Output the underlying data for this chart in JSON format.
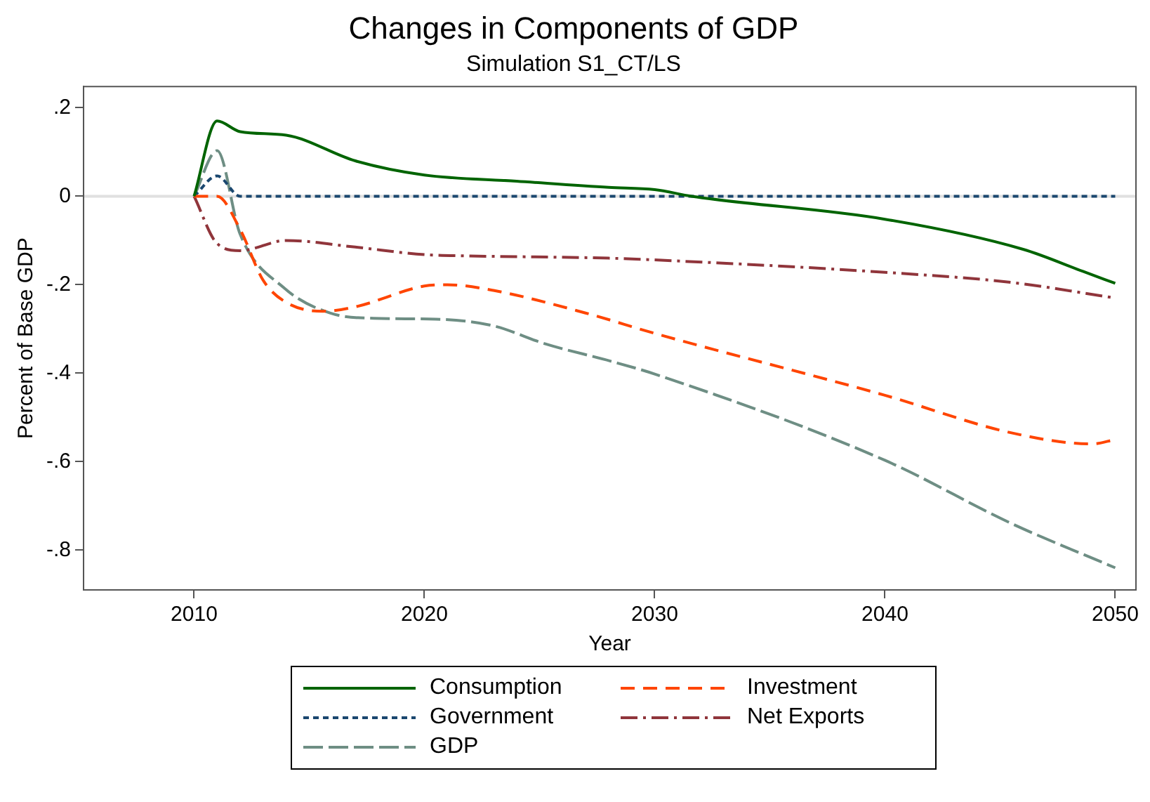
{
  "chart_data": {
    "type": "line",
    "title": "Changes in Components of GDP",
    "subtitle": "Simulation S1_CT/LS",
    "xlabel": "Year",
    "ylabel": "Percent of Base GDP",
    "xlim": [
      2005.2,
      2050.9
    ],
    "xticks": [
      2010,
      2020,
      2030,
      2040,
      2050
    ],
    "ylim": [
      -0.89,
      0.248
    ],
    "yticks": [
      {
        "value": 0.2,
        "label": ".2"
      },
      {
        "value": 0,
        "label": "0"
      },
      {
        "value": -0.2,
        "label": "-.2"
      },
      {
        "value": -0.4,
        "label": "-.4"
      },
      {
        "value": -0.6,
        "label": "-.6"
      },
      {
        "value": -0.8,
        "label": "-.8"
      }
    ],
    "grid": false,
    "legend": "bottom",
    "marker": "none",
    "ref_lines": [
      {
        "axis": "y",
        "value": 0,
        "color": "#e0e0e0"
      }
    ],
    "series": [
      {
        "name": "Consumption",
        "color": "#006400",
        "line_style": "solid",
        "x": [
          2010,
          2011,
          2012,
          2014,
          2017,
          2020,
          2024,
          2028,
          2030,
          2031.6,
          2040,
          2046,
          2048.6,
          2050
        ],
        "values": [
          0,
          0.17,
          0.146,
          0.138,
          0.08,
          0.048,
          0.034,
          0.02,
          0.015,
          0,
          -0.052,
          -0.12,
          -0.17,
          -0.197
        ]
      },
      {
        "name": "Investment",
        "color": "#ff4500",
        "line_style": "dashed",
        "x": [
          2010,
          2011,
          2012,
          2013,
          2014,
          2015.6,
          2017,
          2020,
          2021,
          2023,
          2027,
          2030,
          2040,
          2045.5,
          2049,
          2050
        ],
        "values": [
          0,
          0,
          -0.075,
          -0.19,
          -0.24,
          -0.26,
          -0.25,
          -0.203,
          -0.2,
          -0.213,
          -0.264,
          -0.31,
          -0.45,
          -0.535,
          -0.56,
          -0.55
        ]
      },
      {
        "name": "Government",
        "color": "#1a476f",
        "line_style": "dotted",
        "x": [
          2010,
          2011,
          2012,
          2020,
          2030,
          2040,
          2050
        ],
        "values": [
          0,
          0.046,
          0,
          0,
          0,
          0,
          0
        ]
      },
      {
        "name": "Net Exports",
        "color": "#90353b",
        "line_style": "dashdot",
        "x": [
          2010,
          2011,
          2012,
          2014,
          2017,
          2020,
          2022,
          2028,
          2030,
          2040,
          2045.5,
          2050
        ],
        "values": [
          0,
          -0.107,
          -0.123,
          -0.1,
          -0.115,
          -0.132,
          -0.135,
          -0.14,
          -0.144,
          -0.172,
          -0.195,
          -0.23
        ]
      },
      {
        "name": "GDP",
        "color": "#6e8e84",
        "line_style": "longdash",
        "x": [
          2010,
          2011,
          2012,
          2013.9,
          2015.9,
          2017.8,
          2020.5,
          2023,
          2025.2,
          2028.1,
          2030,
          2040,
          2045.5,
          2050
        ],
        "values": [
          0,
          0.103,
          -0.086,
          -0.207,
          -0.264,
          -0.276,
          -0.278,
          -0.293,
          -0.333,
          -0.373,
          -0.402,
          -0.597,
          -0.74,
          -0.84
        ]
      }
    ]
  }
}
